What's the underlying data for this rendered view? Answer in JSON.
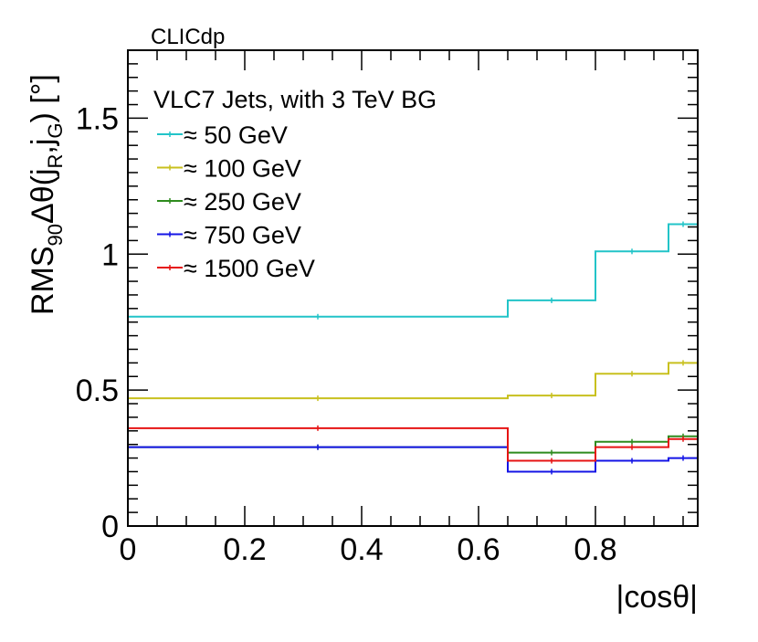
{
  "chart_data": {
    "type": "line",
    "step": true,
    "watermark": "CLICdp",
    "legend_title": "VLC7 Jets, with 3 TeV BG",
    "legend_prefix": "≈",
    "xlabel": "|cosθ|",
    "ylabel_parts": {
      "main": "RMS",
      "sub90": "90",
      "delta": "Δθ(j",
      "subR": "R",
      "comma": ",j",
      "subG": "G",
      "unit": ") [°]"
    },
    "xlim": [
      0,
      0.975
    ],
    "ylim": [
      0,
      1.75
    ],
    "x_ticks": [
      0,
      0.2,
      0.4,
      0.6,
      0.8
    ],
    "x_tick_labels": [
      "0",
      "0.2",
      "0.4",
      "0.6",
      "0.8"
    ],
    "y_ticks": [
      0,
      0.5,
      1,
      1.5
    ],
    "y_tick_labels": [
      "0",
      "0.5",
      "1",
      "1.5"
    ],
    "bin_edges": [
      0,
      0.65,
      0.8,
      0.925,
      0.975
    ],
    "series": [
      {
        "name": "50 GeV",
        "color": "#22c4c8",
        "values": [
          0.77,
          0.83,
          1.01,
          1.11
        ]
      },
      {
        "name": "100 GeV",
        "color": "#c8c01e",
        "values": [
          0.47,
          0.48,
          0.56,
          0.6
        ]
      },
      {
        "name": "250 GeV",
        "color": "#2e8b1e",
        "values": [
          0.29,
          0.27,
          0.31,
          0.33
        ]
      },
      {
        "name": "750 GeV",
        "color": "#1414e6",
        "values": [
          0.29,
          0.2,
          0.24,
          0.25
        ]
      },
      {
        "name": "1500 GeV",
        "color": "#e61414",
        "values": [
          0.36,
          0.24,
          0.29,
          0.32
        ]
      }
    ]
  }
}
